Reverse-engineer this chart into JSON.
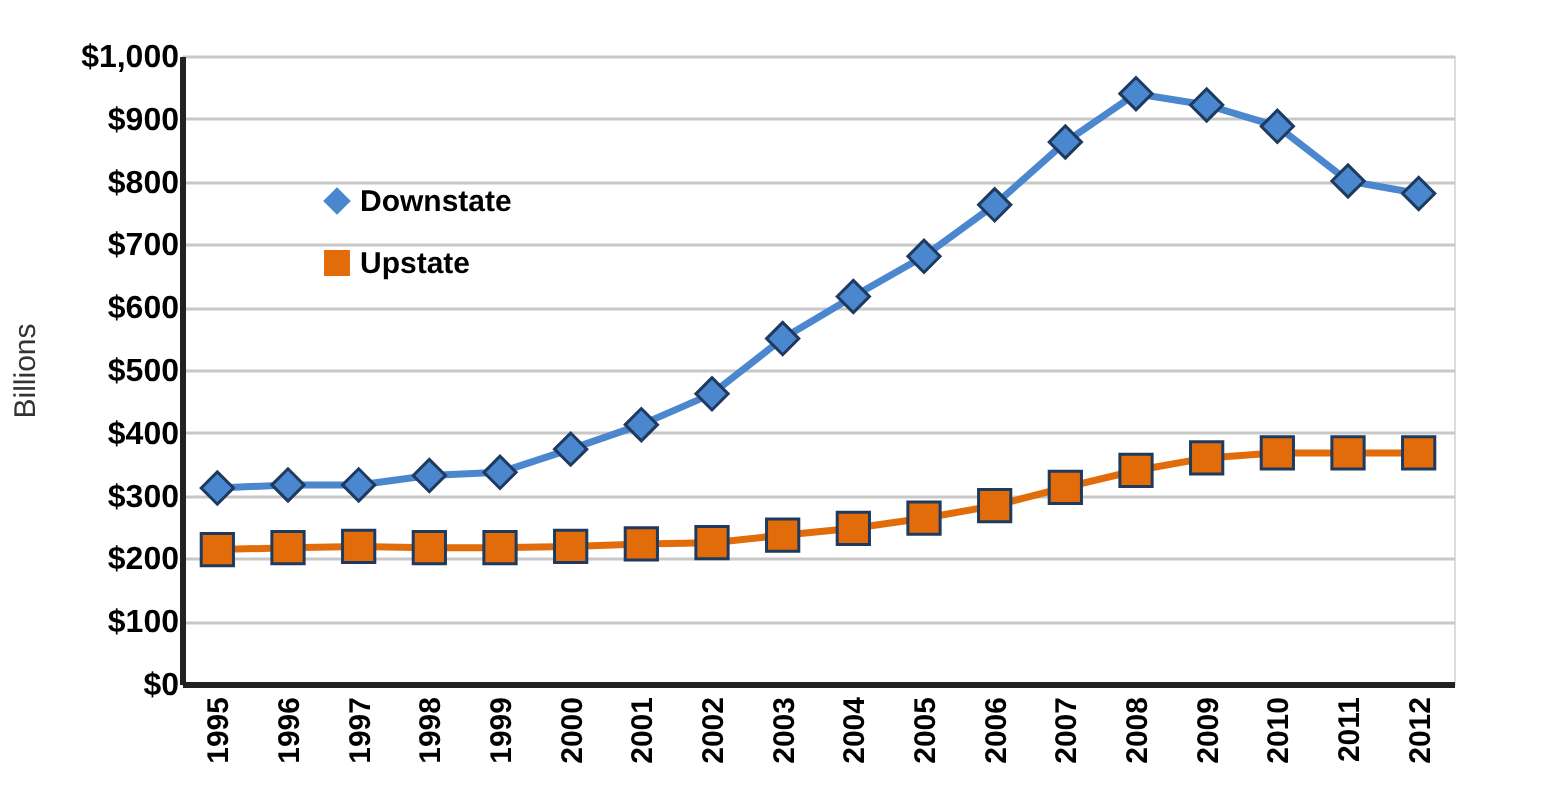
{
  "chart_data": {
    "type": "line",
    "ylabel": "Billions",
    "categories": [
      "1995",
      "1996",
      "1997",
      "1998",
      "1999",
      "2000",
      "2001",
      "2002",
      "2003",
      "2004",
      "2005",
      "2006",
      "2007",
      "2008",
      "2009",
      "2010",
      "2011",
      "2012"
    ],
    "series": [
      {
        "name": "Downstate",
        "color": "#4a87cf",
        "marker": "diamond",
        "values": [
          312,
          317,
          317,
          332,
          337,
          374,
          413,
          462,
          550,
          617,
          681,
          763,
          863,
          940,
          922,
          888,
          801,
          781
        ]
      },
      {
        "name": "Upstate",
        "color": "#e36c0a",
        "marker": "square",
        "values": [
          214,
          217,
          219,
          217,
          217,
          219,
          223,
          225,
          237,
          248,
          264,
          284,
          313,
          340,
          360,
          368,
          368,
          368
        ]
      }
    ],
    "ylim": [
      0,
      1000
    ],
    "yticks": [
      {
        "value": 0,
        "label": "$0"
      },
      {
        "value": 100,
        "label": "$100"
      },
      {
        "value": 200,
        "label": "$200"
      },
      {
        "value": 300,
        "label": "$300"
      },
      {
        "value": 400,
        "label": "$400"
      },
      {
        "value": 500,
        "label": "$500"
      },
      {
        "value": 600,
        "label": "$600"
      },
      {
        "value": 700,
        "label": "$700"
      },
      {
        "value": 800,
        "label": "$800"
      },
      {
        "value": 900,
        "label": "$900"
      },
      {
        "value": 1000,
        "label": "$1,000"
      }
    ],
    "grid": "y",
    "legend": "top left",
    "line_style": "solid"
  }
}
